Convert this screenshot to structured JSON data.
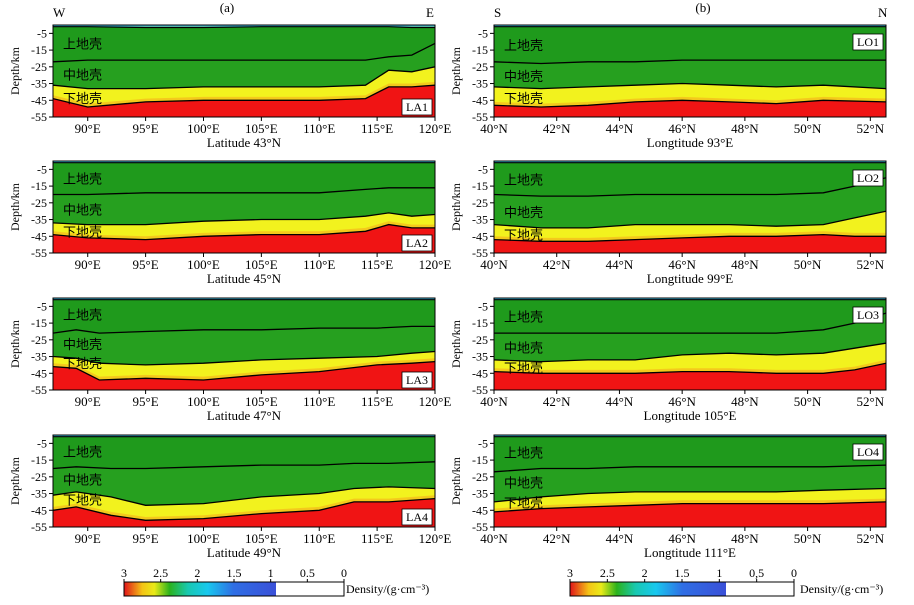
{
  "column_labels": [
    "(a)",
    "(b)"
  ],
  "direction_labels": {
    "west": "W",
    "east": "E",
    "south": "S",
    "north": "N"
  },
  "colors": {
    "upper_crust": "#1f9a1c",
    "mid_crust": "#26a01f",
    "lower_crust": "#f2f21e",
    "mantle": "#f01414",
    "surface": "#3ec1e6",
    "boundary_line": "#000000"
  },
  "chart_data": [
    {
      "type": "heatmap",
      "id": "LA1",
      "panel_label": "LA1",
      "xlabel": "Latitude 43°N",
      "ylabel": "Depth/km",
      "x_unit": "°E",
      "xlim": [
        87,
        120
      ],
      "ylim": [
        -55,
        0
      ],
      "x_ticks": [
        90,
        95,
        100,
        105,
        110,
        115,
        120
      ],
      "x_tick_labels": [
        "90°E",
        "95°E",
        "100°E",
        "105°E",
        "110°E",
        "115°E",
        "120°E"
      ],
      "y_ticks": [
        -5,
        -15,
        -25,
        -35,
        -45,
        -55
      ],
      "y_tick_labels": [
        "-5",
        "-15",
        "-25",
        "-35",
        "-45",
        "-55"
      ],
      "layer_labels": [
        "上地壳",
        "中地壳",
        "下地壳"
      ],
      "boundaries": {
        "x": [
          87,
          90,
          95,
          100,
          105,
          110,
          114,
          116,
          118,
          120
        ],
        "surface": [
          -1,
          -1,
          -1.5,
          -1.5,
          -1,
          -1,
          -1,
          -1,
          -1.5,
          -1.5
        ],
        "upper_mid": [
          -22,
          -21,
          -21,
          -21,
          -21,
          -21,
          -21,
          -19,
          -18,
          -11
        ],
        "mid_lower": [
          -36,
          -38,
          -38,
          -37,
          -37,
          -37,
          -36,
          -27,
          -28,
          -25
        ],
        "lower_mantle": [
          -44,
          -49,
          -46,
          -45,
          -45,
          -45,
          -44,
          -37,
          -37,
          -36
        ]
      }
    },
    {
      "type": "heatmap",
      "id": "LA2",
      "panel_label": "LA2",
      "xlabel": "Latitude 45°N",
      "ylabel": "Depth/km",
      "x_unit": "°E",
      "xlim": [
        87,
        120
      ],
      "ylim": [
        -55,
        0
      ],
      "x_ticks": [
        90,
        95,
        100,
        105,
        110,
        115,
        120
      ],
      "x_tick_labels": [
        "90°E",
        "95°E",
        "100°E",
        "105°E",
        "110°E",
        "115°E",
        "120°E"
      ],
      "y_ticks": [
        -5,
        -15,
        -25,
        -35,
        -45,
        -55
      ],
      "y_tick_labels": [
        "-5",
        "-15",
        "-25",
        "-35",
        "-45",
        "-55"
      ],
      "layer_labels": [
        "上地壳",
        "中地壳",
        "下地壳"
      ],
      "boundaries": {
        "x": [
          87,
          90,
          95,
          100,
          105,
          110,
          114,
          116,
          118,
          120
        ],
        "surface": [
          -1,
          -1,
          -1,
          -1,
          -1,
          -1,
          -1,
          -1,
          -1,
          -1
        ],
        "upper_mid": [
          -20,
          -20,
          -19,
          -19,
          -19,
          -19,
          -17,
          -16,
          -16,
          -16
        ],
        "mid_lower": [
          -37,
          -38,
          -38,
          -36,
          -35,
          -35,
          -33,
          -31,
          -33,
          -32
        ],
        "lower_mantle": [
          -44,
          -46,
          -47,
          -45,
          -44,
          -44,
          -42,
          -38,
          -40,
          -40
        ]
      }
    },
    {
      "type": "heatmap",
      "id": "LA3",
      "panel_label": "LA3",
      "xlabel": "Latitude 47°N",
      "ylabel": "Depth/km",
      "x_unit": "°E",
      "xlim": [
        87,
        120
      ],
      "ylim": [
        -55,
        0
      ],
      "x_ticks": [
        90,
        95,
        100,
        105,
        110,
        115,
        120
      ],
      "x_tick_labels": [
        "90°E",
        "95°E",
        "100°E",
        "105°E",
        "110°E",
        "115°E",
        "120°E"
      ],
      "y_ticks": [
        -5,
        -15,
        -25,
        -35,
        -45,
        -55
      ],
      "y_tick_labels": [
        "-5",
        "-15",
        "-25",
        "-35",
        "-45",
        "-55"
      ],
      "layer_labels": [
        "上地壳",
        "中地壳",
        "下地壳"
      ],
      "boundaries": {
        "x": [
          87,
          89,
          91,
          95,
          100,
          105,
          110,
          115,
          118,
          120
        ],
        "surface": [
          -1,
          -1,
          -1,
          -1,
          -1,
          -1,
          -1,
          -1,
          -1,
          -1
        ],
        "upper_mid": [
          -21,
          -19,
          -21,
          -20,
          -19,
          -19,
          -18,
          -18,
          -17,
          -17
        ],
        "mid_lower": [
          -35,
          -36,
          -39,
          -40,
          -39,
          -37,
          -36,
          -35,
          -33,
          -32
        ],
        "lower_mantle": [
          -41,
          -42,
          -49,
          -48,
          -49,
          -46,
          -44,
          -40,
          -39,
          -38
        ]
      }
    },
    {
      "type": "heatmap",
      "id": "LA4",
      "panel_label": "LA4",
      "xlabel": "Latitude 49°N",
      "ylabel": "Depth/km",
      "x_unit": "°E",
      "xlim": [
        87,
        120
      ],
      "ylim": [
        -55,
        0
      ],
      "x_ticks": [
        90,
        95,
        100,
        105,
        110,
        115,
        120
      ],
      "x_tick_labels": [
        "90°E",
        "95°E",
        "100°E",
        "105°E",
        "110°E",
        "115°E",
        "120°E"
      ],
      "y_ticks": [
        -5,
        -15,
        -25,
        -35,
        -45,
        -55
      ],
      "y_tick_labels": [
        "-5",
        "-15",
        "-25",
        "-35",
        "-45",
        "-55"
      ],
      "layer_labels": [
        "上地壳",
        "中地壳",
        "下地壳"
      ],
      "boundaries": {
        "x": [
          87,
          89,
          92,
          95,
          100,
          105,
          110,
          113,
          116,
          120
        ],
        "surface": [
          -1,
          -1,
          -1,
          -1,
          -1,
          -1,
          -1,
          -1,
          -1,
          -1
        ],
        "upper_mid": [
          -20,
          -19,
          -20,
          -20,
          -19,
          -18,
          -18,
          -17,
          -17,
          -16
        ],
        "mid_lower": [
          -36,
          -34,
          -37,
          -42,
          -41,
          -37,
          -35,
          -32,
          -31,
          -32
        ],
        "lower_mantle": [
          -45,
          -43,
          -48,
          -51,
          -50,
          -47,
          -45,
          -40,
          -40,
          -38
        ]
      }
    },
    {
      "type": "heatmap",
      "id": "LO1",
      "panel_label": "LO1",
      "xlabel": "Longtitude 93°E",
      "ylabel": "Depth/km",
      "x_unit": "°N",
      "xlim": [
        40,
        52.5
      ],
      "ylim": [
        -55,
        0
      ],
      "x_ticks": [
        40,
        42,
        44,
        46,
        48,
        50,
        52
      ],
      "x_tick_labels": [
        "40°N",
        "42°N",
        "44°N",
        "46°N",
        "48°N",
        "50°N",
        "52°N"
      ],
      "y_ticks": [
        -5,
        -15,
        -25,
        -35,
        -45,
        -55
      ],
      "y_tick_labels": [
        "-5",
        "-15",
        "-25",
        "-35",
        "-45",
        "-55"
      ],
      "layer_labels": [
        "上地壳",
        "中地壳",
        "下地壳"
      ],
      "boundaries": {
        "x": [
          40,
          41.5,
          43,
          44.5,
          46,
          47.5,
          49,
          50.5,
          52.5
        ],
        "surface": [
          -1,
          -1,
          -1,
          -1,
          -1,
          -1,
          -1,
          -1,
          -1
        ],
        "upper_mid": [
          -22,
          -23,
          -22,
          -22,
          -21,
          -21,
          -21,
          -21,
          -21
        ],
        "mid_lower": [
          -37,
          -38,
          -37,
          -36,
          -35,
          -36,
          -37,
          -36,
          -38
        ],
        "lower_mantle": [
          -48,
          -49,
          -48,
          -46,
          -45,
          -46,
          -47,
          -45,
          -46
        ]
      }
    },
    {
      "type": "heatmap",
      "id": "LO2",
      "panel_label": "LO2",
      "xlabel": "Longtitude 99°E",
      "ylabel": "Depth/km",
      "x_unit": "°N",
      "xlim": [
        40,
        52.5
      ],
      "ylim": [
        -55,
        0
      ],
      "x_ticks": [
        40,
        42,
        44,
        46,
        48,
        50,
        52
      ],
      "x_tick_labels": [
        "40°N",
        "42°N",
        "44°N",
        "46°N",
        "48°N",
        "50°N",
        "52°N"
      ],
      "y_ticks": [
        -5,
        -15,
        -25,
        -35,
        -45,
        -55
      ],
      "y_tick_labels": [
        "-5",
        "-15",
        "-25",
        "-35",
        "-45",
        "-55"
      ],
      "layer_labels": [
        "上地壳",
        "中地壳",
        "下地壳"
      ],
      "boundaries": {
        "x": [
          40,
          41.5,
          43,
          44.5,
          46,
          47.5,
          49,
          50.5,
          51.5,
          52.5
        ],
        "surface": [
          -1,
          -1,
          -1,
          -1,
          -1,
          -1,
          -1,
          -1,
          -1,
          -1
        ],
        "upper_mid": [
          -20,
          -21,
          -21,
          -20,
          -20,
          -20,
          -20,
          -19,
          -15,
          -10
        ],
        "mid_lower": [
          -38,
          -40,
          -40,
          -38,
          -38,
          -38,
          -39,
          -38,
          -34,
          -30
        ],
        "lower_mantle": [
          -47,
          -48,
          -48,
          -47,
          -46,
          -45,
          -45,
          -44,
          -45,
          -45
        ]
      }
    },
    {
      "type": "heatmap",
      "id": "LO3",
      "panel_label": "LO3",
      "xlabel": "Longtitude 105°E",
      "ylabel": "Depth/km",
      "x_unit": "°N",
      "xlim": [
        40,
        52.5
      ],
      "ylim": [
        -55,
        0
      ],
      "x_ticks": [
        40,
        42,
        44,
        46,
        48,
        50,
        52
      ],
      "x_tick_labels": [
        "40°N",
        "42°N",
        "44°N",
        "46°N",
        "48°N",
        "50°N",
        "52°N"
      ],
      "y_ticks": [
        -5,
        -15,
        -25,
        -35,
        -45,
        -55
      ],
      "y_tick_labels": [
        "-5",
        "-15",
        "-25",
        "-35",
        "-45",
        "-55"
      ],
      "layer_labels": [
        "上地壳",
        "中地壳",
        "下地壳"
      ],
      "boundaries": {
        "x": [
          40,
          41.5,
          43,
          44.5,
          46,
          47.5,
          49,
          50.5,
          51.5,
          52.5
        ],
        "surface": [
          -1,
          -1,
          -1,
          -1,
          -1,
          -1,
          -1,
          -1,
          -1,
          -1
        ],
        "upper_mid": [
          -21,
          -21,
          -21,
          -21,
          -21,
          -21,
          -21,
          -19,
          -15,
          -9
        ],
        "mid_lower": [
          -37,
          -38,
          -37,
          -37,
          -34,
          -33,
          -34,
          -33,
          -30,
          -27
        ],
        "lower_mantle": [
          -44,
          -45,
          -45,
          -45,
          -44,
          -44,
          -45,
          -45,
          -43,
          -39
        ]
      }
    },
    {
      "type": "heatmap",
      "id": "LO4",
      "panel_label": "LO4",
      "xlabel": "Longtitude 111°E",
      "ylabel": "Depth/km",
      "x_unit": "°N",
      "xlim": [
        40,
        52.5
      ],
      "ylim": [
        -55,
        0
      ],
      "x_ticks": [
        40,
        42,
        44,
        46,
        48,
        50,
        52
      ],
      "x_tick_labels": [
        "40°N",
        "42°N",
        "44°N",
        "46°N",
        "48°N",
        "50°N",
        "52°N"
      ],
      "y_ticks": [
        -5,
        -15,
        -25,
        -35,
        -45,
        -55
      ],
      "y_tick_labels": [
        "-5",
        "-15",
        "-25",
        "-35",
        "-45",
        "-55"
      ],
      "layer_labels": [
        "上地壳",
        "中地壳",
        "下地壳"
      ],
      "boundaries": {
        "x": [
          40,
          41.5,
          43,
          44.5,
          46,
          47.5,
          49,
          50.5,
          52.5
        ],
        "surface": [
          -1,
          -1,
          -1,
          -1,
          -1,
          -1,
          -1,
          -1,
          -1
        ],
        "upper_mid": [
          -22,
          -20,
          -20,
          -19,
          -19,
          -19,
          -19,
          -19,
          -18
        ],
        "mid_lower": [
          -40,
          -37,
          -35,
          -34,
          -34,
          -34,
          -34,
          -33,
          -32
        ],
        "lower_mantle": [
          -46,
          -44,
          -43,
          -42,
          -41,
          -41,
          -41,
          -41,
          -40
        ]
      }
    }
  ],
  "colorbars": [
    {
      "id": "colorbar-a",
      "label": "Density/(g·cm⁻³)",
      "tick_labels": [
        "3",
        "2.5",
        "2",
        "1.5",
        "1",
        "0.5",
        "0"
      ]
    },
    {
      "id": "colorbar-b",
      "label": "Density/(g·cm⁻³)",
      "tick_labels": [
        "3",
        "2.5",
        "2",
        "1.5",
        "1",
        "0,5",
        "0"
      ]
    }
  ]
}
